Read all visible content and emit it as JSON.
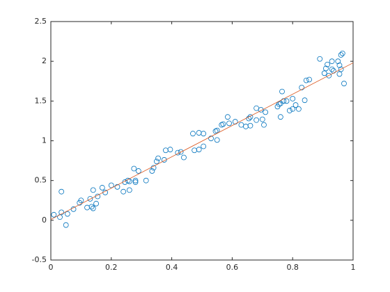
{
  "chart_data": {
    "type": "scatter",
    "xlim": [
      0,
      1
    ],
    "ylim": [
      -0.5,
      2.5
    ],
    "xticks": [
      0,
      0.2,
      0.4,
      0.6,
      0.8,
      1
    ],
    "yticks": [
      -0.5,
      0,
      0.5,
      1,
      1.5,
      2,
      2.5
    ],
    "grid": false,
    "series": [
      {
        "color": "#0072bd",
        "x": [
          0.01,
          0.03,
          0.035,
          0.035,
          0.05,
          0.055,
          0.075,
          0.095,
          0.1,
          0.12,
          0.13,
          0.135,
          0.14,
          0.14,
          0.15,
          0.155,
          0.17,
          0.18,
          0.2,
          0.22,
          0.24,
          0.245,
          0.255,
          0.26,
          0.26,
          0.275,
          0.28,
          0.28,
          0.29,
          0.315,
          0.335,
          0.34,
          0.35,
          0.355,
          0.375,
          0.38,
          0.395,
          0.42,
          0.43,
          0.44,
          0.47,
          0.475,
          0.49,
          0.49,
          0.505,
          0.505,
          0.53,
          0.545,
          0.55,
          0.55,
          0.565,
          0.57,
          0.585,
          0.59,
          0.61,
          0.63,
          0.645,
          0.655,
          0.66,
          0.66,
          0.68,
          0.68,
          0.695,
          0.7,
          0.705,
          0.71,
          0.75,
          0.755,
          0.76,
          0.76,
          0.765,
          0.77,
          0.78,
          0.79,
          0.8,
          0.8,
          0.81,
          0.82,
          0.83,
          0.84,
          0.845,
          0.855,
          0.89,
          0.905,
          0.91,
          0.915,
          0.92,
          0.93,
          0.93,
          0.935,
          0.95,
          0.955,
          0.955,
          0.96,
          0.96,
          0.965,
          0.97
        ],
        "y": [
          0.07,
          0.04,
          0.36,
          0.1,
          -0.06,
          0.08,
          0.14,
          0.22,
          0.25,
          0.16,
          0.27,
          0.17,
          0.15,
          0.38,
          0.21,
          0.3,
          0.41,
          0.35,
          0.44,
          0.42,
          0.36,
          0.48,
          0.5,
          0.38,
          0.49,
          0.65,
          0.5,
          0.48,
          0.62,
          0.5,
          0.62,
          0.66,
          0.74,
          0.78,
          0.76,
          0.88,
          0.89,
          0.85,
          0.86,
          0.79,
          1.09,
          0.88,
          1.1,
          0.89,
          1.09,
          0.93,
          1.03,
          1.12,
          1.13,
          1.01,
          1.2,
          1.21,
          1.3,
          1.22,
          1.24,
          1.2,
          1.18,
          1.28,
          1.3,
          1.19,
          1.41,
          1.26,
          1.39,
          1.27,
          1.2,
          1.36,
          1.43,
          1.46,
          1.47,
          1.3,
          1.62,
          1.5,
          1.5,
          1.38,
          1.4,
          1.53,
          1.45,
          1.4,
          1.67,
          1.51,
          1.76,
          1.77,
          2.03,
          1.85,
          1.91,
          1.96,
          1.82,
          1.9,
          2.0,
          1.88,
          2.0,
          1.95,
          1.84,
          2.08,
          1.9,
          2.1,
          1.72
        ]
      }
    ],
    "fit": {
      "color": "#d95319",
      "x": [
        0,
        1
      ],
      "y": [
        0.01,
        1.98
      ]
    }
  }
}
